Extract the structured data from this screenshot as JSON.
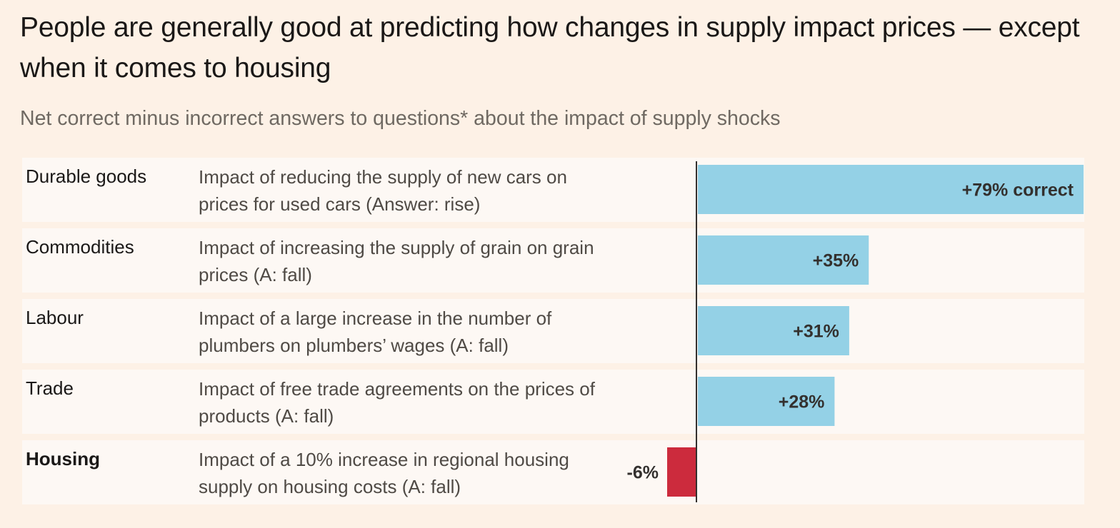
{
  "title": "People are generally good at predicting how changes in supply impact prices — except when it comes to housing",
  "subtitle": "Net correct minus incorrect answers to questions* about the impact of supply shocks",
  "colors": {
    "background": "#fdf1e6",
    "row_background": "#fdf8f4",
    "positive": "#94d1e6",
    "negative": "#cc2b3d",
    "axis": "#33302e"
  },
  "chart_data": {
    "type": "bar",
    "orientation": "horizontal",
    "title": "People are generally good at predicting how changes in supply impact prices — except when it comes to housing",
    "subtitle": "Net correct minus incorrect answers to questions* about the impact of supply shocks",
    "xlim": [
      -6,
      79
    ],
    "grid": false,
    "categories": [
      "Durable goods",
      "Commodities",
      "Labour",
      "Trade",
      "Housing"
    ],
    "descriptions": [
      "Impact of reducing the supply of new cars on prices for used cars (Answer: rise)",
      "Impact of increasing the supply of grain on grain prices (A: fall)",
      "Impact of a large increase in the number of plumbers on plumbers’ wages (A: fall)",
      "Impact of free trade agreements on the prices of products (A: fall)",
      "Impact of a 10% increase in regional housing supply on housing costs (A: fall)"
    ],
    "values": [
      79,
      35,
      31,
      28,
      -6
    ],
    "value_labels": [
      "+79% correct",
      "+35%",
      "+31%",
      "+28%",
      "-6%"
    ],
    "highlight": "Housing"
  }
}
